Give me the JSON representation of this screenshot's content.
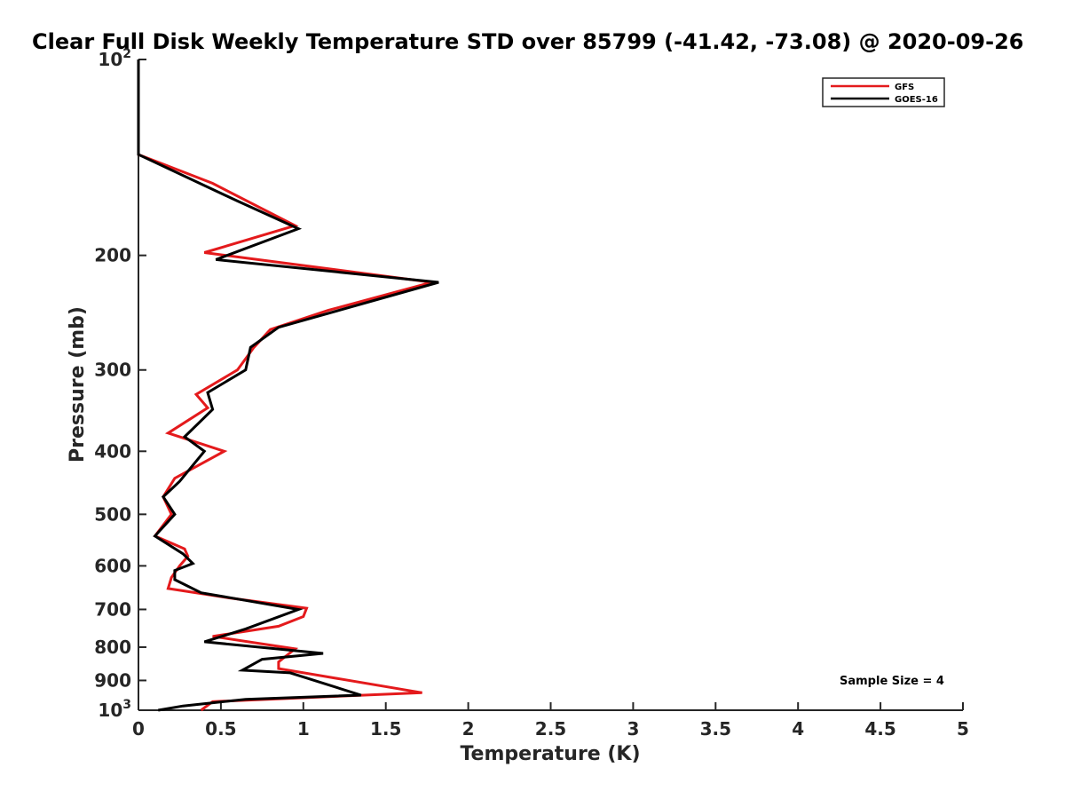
{
  "chart_data": {
    "type": "line",
    "title": "Clear Full Disk Weekly Temperature STD over 85799 (-41.42, -73.08) @ 2020-09-26",
    "xlabel": "Temperature (K)",
    "ylabel": "Pressure (mb)",
    "xlim": [
      0,
      5
    ],
    "ylim": [
      100,
      1000
    ],
    "y_scale": "log",
    "y_reversed": true,
    "x_ticks": [
      {
        "v": 0,
        "label": "0"
      },
      {
        "v": 0.5,
        "label": "0.5"
      },
      {
        "v": 1,
        "label": "1"
      },
      {
        "v": 1.5,
        "label": "1.5"
      },
      {
        "v": 2,
        "label": "2"
      },
      {
        "v": 2.5,
        "label": "2.5"
      },
      {
        "v": 3,
        "label": "3"
      },
      {
        "v": 3.5,
        "label": "3.5"
      },
      {
        "v": 4,
        "label": "4"
      },
      {
        "v": 4.5,
        "label": "4.5"
      },
      {
        "v": 5,
        "label": "5"
      }
    ],
    "y_ticks": [
      {
        "v": 100,
        "label": "10",
        "sup": "2"
      },
      {
        "v": 200,
        "label": "200"
      },
      {
        "v": 300,
        "label": "300"
      },
      {
        "v": 400,
        "label": "400"
      },
      {
        "v": 500,
        "label": "500"
      },
      {
        "v": 600,
        "label": "600"
      },
      {
        "v": 700,
        "label": "700"
      },
      {
        "v": 800,
        "label": "800"
      },
      {
        "v": 900,
        "label": "900"
      },
      {
        "v": 1000,
        "label": "10",
        "sup": "3"
      }
    ],
    "grid": false,
    "legend_position": "top-right",
    "annotation": "Sample Size = 4",
    "series": [
      {
        "name": "GFS",
        "color": "#e41a1c",
        "points": [
          [
            0,
            100
          ],
          [
            0,
            140
          ],
          [
            0.45,
            155
          ],
          [
            0.95,
            180
          ],
          [
            0.4,
            198
          ],
          [
            1.78,
            220
          ],
          [
            1.15,
            243
          ],
          [
            0.8,
            260
          ],
          [
            0.7,
            277
          ],
          [
            0.6,
            300
          ],
          [
            0.35,
            327
          ],
          [
            0.42,
            343
          ],
          [
            0.18,
            375
          ],
          [
            0.52,
            400
          ],
          [
            0.22,
            440
          ],
          [
            0.15,
            470
          ],
          [
            0.2,
            500
          ],
          [
            0.1,
            540
          ],
          [
            0.28,
            565
          ],
          [
            0.3,
            580
          ],
          [
            0.25,
            600
          ],
          [
            0.2,
            625
          ],
          [
            0.18,
            650
          ],
          [
            0.55,
            672
          ],
          [
            1.02,
            697
          ],
          [
            1.0,
            718
          ],
          [
            0.85,
            743
          ],
          [
            0.45,
            770
          ],
          [
            0.95,
            805
          ],
          [
            0.85,
            843
          ],
          [
            0.85,
            863
          ],
          [
            1.72,
            940
          ],
          [
            0.45,
            970
          ],
          [
            0.38,
            1000
          ]
        ]
      },
      {
        "name": "GOES-16",
        "color": "#000000",
        "points": [
          [
            0,
            100
          ],
          [
            0,
            140
          ],
          [
            0.6,
            165
          ],
          [
            0.97,
            182
          ],
          [
            0.47,
            203
          ],
          [
            1.82,
            220
          ],
          [
            0.85,
            258
          ],
          [
            0.68,
            277
          ],
          [
            0.65,
            300
          ],
          [
            0.42,
            325
          ],
          [
            0.45,
            345
          ],
          [
            0.28,
            380
          ],
          [
            0.4,
            400
          ],
          [
            0.25,
            445
          ],
          [
            0.15,
            470
          ],
          [
            0.22,
            500
          ],
          [
            0.1,
            540
          ],
          [
            0.27,
            575
          ],
          [
            0.33,
            595
          ],
          [
            0.22,
            610
          ],
          [
            0.22,
            630
          ],
          [
            0.38,
            660
          ],
          [
            0.97,
            700
          ],
          [
            0.65,
            750
          ],
          [
            0.4,
            785
          ],
          [
            1.12,
            818
          ],
          [
            0.75,
            835
          ],
          [
            0.63,
            868
          ],
          [
            0.92,
            876
          ],
          [
            1.35,
            948
          ],
          [
            0.65,
            962
          ],
          [
            0.27,
            985
          ],
          [
            0.12,
            1000
          ]
        ]
      }
    ]
  }
}
